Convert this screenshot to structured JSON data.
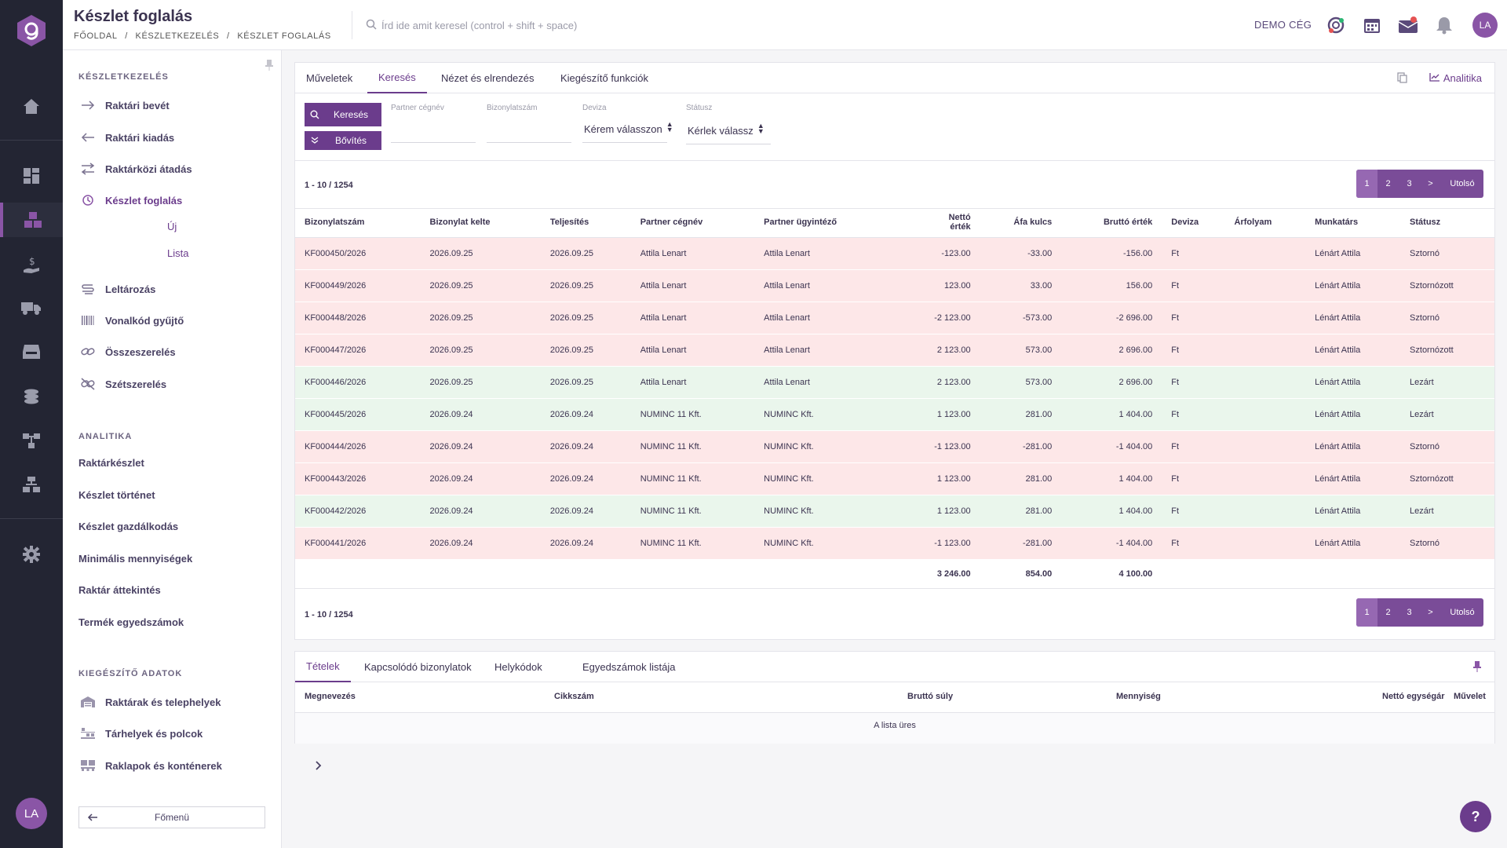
{
  "header": {
    "title": "Készlet foglalás",
    "breadcrumb": [
      "FŐOLDAL",
      "/",
      "KÉSZLETKEZELÉS",
      "/",
      "KÉSZLET FOGLALÁS"
    ],
    "search_placeholder": "Írd ide amit keresel (control + shift + space)",
    "company": "DEMO CÉG",
    "avatar_initials": "LA",
    "icons": [
      "support-icon",
      "calendar-icon",
      "mail-icon",
      "bell-icon"
    ]
  },
  "rail": {
    "avatar_initials": "LA",
    "icons": [
      "home-icon",
      "dashboard-icon",
      "inventory-icon",
      "finance-icon",
      "delivery-truck-icon",
      "inbox-icon",
      "coins-icon",
      "workflow-icon",
      "org-chart-icon",
      "settings-icon"
    ],
    "accent_color": "#8a55a6"
  },
  "sidebar": {
    "section1": "KÉSZLETKEZELÉS",
    "items1": [
      {
        "label": "Raktári bevét",
        "icon": "arrow-right-icon"
      },
      {
        "label": "Raktári kiadás",
        "icon": "arrow-left-icon"
      },
      {
        "label": "Raktárközi átadás",
        "icon": "swap-icon"
      },
      {
        "label": "Készlet foglalás",
        "icon": "reservation-icon"
      },
      {
        "label": "Leltározás",
        "icon": "inventory-count-icon"
      },
      {
        "label": "Vonalkód gyűjtő",
        "icon": "barcode-icon"
      },
      {
        "label": "Összeszerelés",
        "icon": "link-icon"
      },
      {
        "label": "Szétszerelés",
        "icon": "unlink-icon"
      }
    ],
    "subitems": [
      "Új",
      "Lista"
    ],
    "section2": "ANALITIKA",
    "items2": [
      "Raktárkészlet",
      "Készlet történet",
      "Készlet gazdálkodás",
      "Minimális mennyiségek",
      "Raktár áttekintés",
      "Termék egyedszámok"
    ],
    "section3": "KIEGÉSZÍTŐ ADATOK",
    "items3": [
      {
        "label": "Raktárak és telephelyek",
        "icon": "warehouse-icon"
      },
      {
        "label": "Tárhelyek és polcok",
        "icon": "shelf-icon"
      },
      {
        "label": "Raklapok és konténerek",
        "icon": "pallet-icon"
      }
    ],
    "main_menu": "Főmenü"
  },
  "main": {
    "tabs": [
      "Műveletek",
      "Keresés",
      "Nézet és elrendezés",
      "Kiegészítő funkciók"
    ],
    "analytics": "Analitika",
    "search_button": "Keresés",
    "expand_button": "Bővítés",
    "filters": {
      "partner_label": "Partner cégnév",
      "doc_label": "Bizonylatszám",
      "currency_label": "Deviza",
      "currency_value": "Kérem válasszon",
      "status_label": "Státusz",
      "status_value": "Kérlek válassz"
    },
    "count": "1 - 10 / 1254",
    "pager": [
      "1",
      "2",
      "3",
      ">",
      "Utolsó"
    ],
    "columns": [
      "Bizonylatszám",
      "Bizonylat kelte",
      "Teljesítés",
      "Partner cégnév",
      "Partner ügyintéző",
      "Nettó érték",
      "Áfa kulcs",
      "Bruttó érték",
      "Deviza",
      "Árfolyam",
      "Munkatárs",
      "Státusz"
    ],
    "rows": [
      {
        "c": [
          "KF000450/2026",
          "2026.09.25",
          "2026.09.25",
          "Attila Lenart",
          "Attila Lenart",
          "-123.00",
          "-33.00",
          "-156.00",
          "Ft",
          "",
          "Lénárt Attila",
          "Sztornó"
        ],
        "tone": "red"
      },
      {
        "c": [
          "KF000449/2026",
          "2026.09.25",
          "2026.09.25",
          "Attila Lenart",
          "Attila Lenart",
          "123.00",
          "33.00",
          "156.00",
          "Ft",
          "",
          "Lénárt Attila",
          "Sztornózott"
        ],
        "tone": "red"
      },
      {
        "c": [
          "KF000448/2026",
          "2026.09.25",
          "2026.09.25",
          "Attila Lenart",
          "Attila Lenart",
          "-2 123.00",
          "-573.00",
          "-2 696.00",
          "Ft",
          "",
          "Lénárt Attila",
          "Sztornó"
        ],
        "tone": "red"
      },
      {
        "c": [
          "KF000447/2026",
          "2026.09.25",
          "2026.09.25",
          "Attila Lenart",
          "Attila Lenart",
          "2 123.00",
          "573.00",
          "2 696.00",
          "Ft",
          "",
          "Lénárt Attila",
          "Sztornózott"
        ],
        "tone": "red"
      },
      {
        "c": [
          "KF000446/2026",
          "2026.09.25",
          "2026.09.25",
          "Attila Lenart",
          "Attila Lenart",
          "2 123.00",
          "573.00",
          "2 696.00",
          "Ft",
          "",
          "Lénárt Attila",
          "Lezárt"
        ],
        "tone": "green"
      },
      {
        "c": [
          "KF000445/2026",
          "2026.09.24",
          "2026.09.24",
          "NUMINC 11 Kft.",
          "NUMINC Kft.",
          "1 123.00",
          "281.00",
          "1 404.00",
          "Ft",
          "",
          "Lénárt Attila",
          "Lezárt"
        ],
        "tone": "green"
      },
      {
        "c": [
          "KF000444/2026",
          "2026.09.24",
          "2026.09.24",
          "NUMINC 11 Kft.",
          "NUMINC Kft.",
          "-1 123.00",
          "-281.00",
          "-1 404.00",
          "Ft",
          "",
          "Lénárt Attila",
          "Sztornó"
        ],
        "tone": "red"
      },
      {
        "c": [
          "KF000443/2026",
          "2026.09.24",
          "2026.09.24",
          "NUMINC 11 Kft.",
          "NUMINC Kft.",
          "1 123.00",
          "281.00",
          "1 404.00",
          "Ft",
          "",
          "Lénárt Attila",
          "Sztornózott"
        ],
        "tone": "red"
      },
      {
        "c": [
          "KF000442/2026",
          "2026.09.24",
          "2026.09.24",
          "NUMINC 11 Kft.",
          "NUMINC Kft.",
          "1 123.00",
          "281.00",
          "1 404.00",
          "Ft",
          "",
          "Lénárt Attila",
          "Lezárt"
        ],
        "tone": "green"
      },
      {
        "c": [
          "KF000441/2026",
          "2026.09.24",
          "2026.09.24",
          "NUMINC 11 Kft.",
          "NUMINC Kft.",
          "-1 123.00",
          "-281.00",
          "-1 404.00",
          "Ft",
          "",
          "Lénárt Attila",
          "Sztornó"
        ],
        "tone": "red"
      }
    ],
    "totals": {
      "net": "3 246.00",
      "vat": "854.00",
      "gross": "4 100.00"
    },
    "row_colors": {
      "red": "#fde7e8",
      "green": "#eaf6ec"
    }
  },
  "bottom": {
    "tabs": [
      "Tételek",
      "Kapcsolódó bizonylatok",
      "Helykódok",
      "Egyedszámok listája"
    ],
    "columns": [
      "Megnevezés",
      "Cikkszám",
      "Bruttó súly",
      "Mennyiség",
      "Nettó egységár",
      "Művelet"
    ],
    "empty": "A lista üres"
  },
  "help": "?"
}
